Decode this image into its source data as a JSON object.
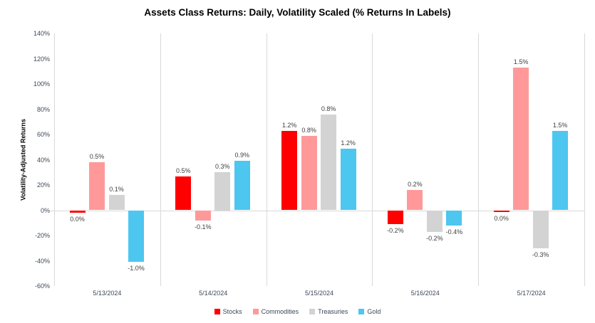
{
  "title": "Assets Class Returns: Daily, Volatility Scaled (% Returns In Labels)",
  "chart_data": {
    "type": "bar",
    "title": "Assets Class Returns: Daily, Volatility Scaled (% Returns In Labels)",
    "ylabel": "Volatility-Adjusted Returns",
    "xlabel": "",
    "categories": [
      "5/13/2024",
      "5/14/2024",
      "5/15/2024",
      "5/16/2024",
      "5/17/2024"
    ],
    "series": [
      {
        "name": "Stocks",
        "color": "#ff0000",
        "bar_heights_pct": [
          -2,
          27,
          63,
          -11,
          -1
        ],
        "point_labels": [
          "0.0%",
          "0.5%",
          "1.2%",
          "-0.2%",
          "0.0%"
        ]
      },
      {
        "name": "Commodities",
        "color": "#ff9999",
        "bar_heights_pct": [
          38,
          -8,
          59,
          16,
          113
        ],
        "point_labels": [
          "0.5%",
          "-0.1%",
          "0.8%",
          "0.2%",
          "1.5%"
        ]
      },
      {
        "name": "Treasuries",
        "color": "#d3d3d3",
        "bar_heights_pct": [
          12,
          30,
          76,
          -17,
          -30
        ],
        "point_labels": [
          "0.1%",
          "0.3%",
          "0.8%",
          "-0.2%",
          "-0.3%"
        ]
      },
      {
        "name": "Gold",
        "color": "#4dc6f0",
        "bar_heights_pct": [
          -41,
          39,
          49,
          -12,
          63
        ],
        "point_labels": [
          "-1.0%",
          "0.9%",
          "1.2%",
          "-0.4%",
          "1.5%"
        ]
      }
    ],
    "y_ticks": [
      "140%",
      "120%",
      "100%",
      "80%",
      "60%",
      "40%",
      "20%",
      "0%",
      "-20%",
      "-40%",
      "-60%"
    ],
    "ylim": [
      -60,
      140
    ],
    "grid": "no horizontal gridlines; zero baseline and vertical category separators only",
    "legend_position": "bottom"
  }
}
